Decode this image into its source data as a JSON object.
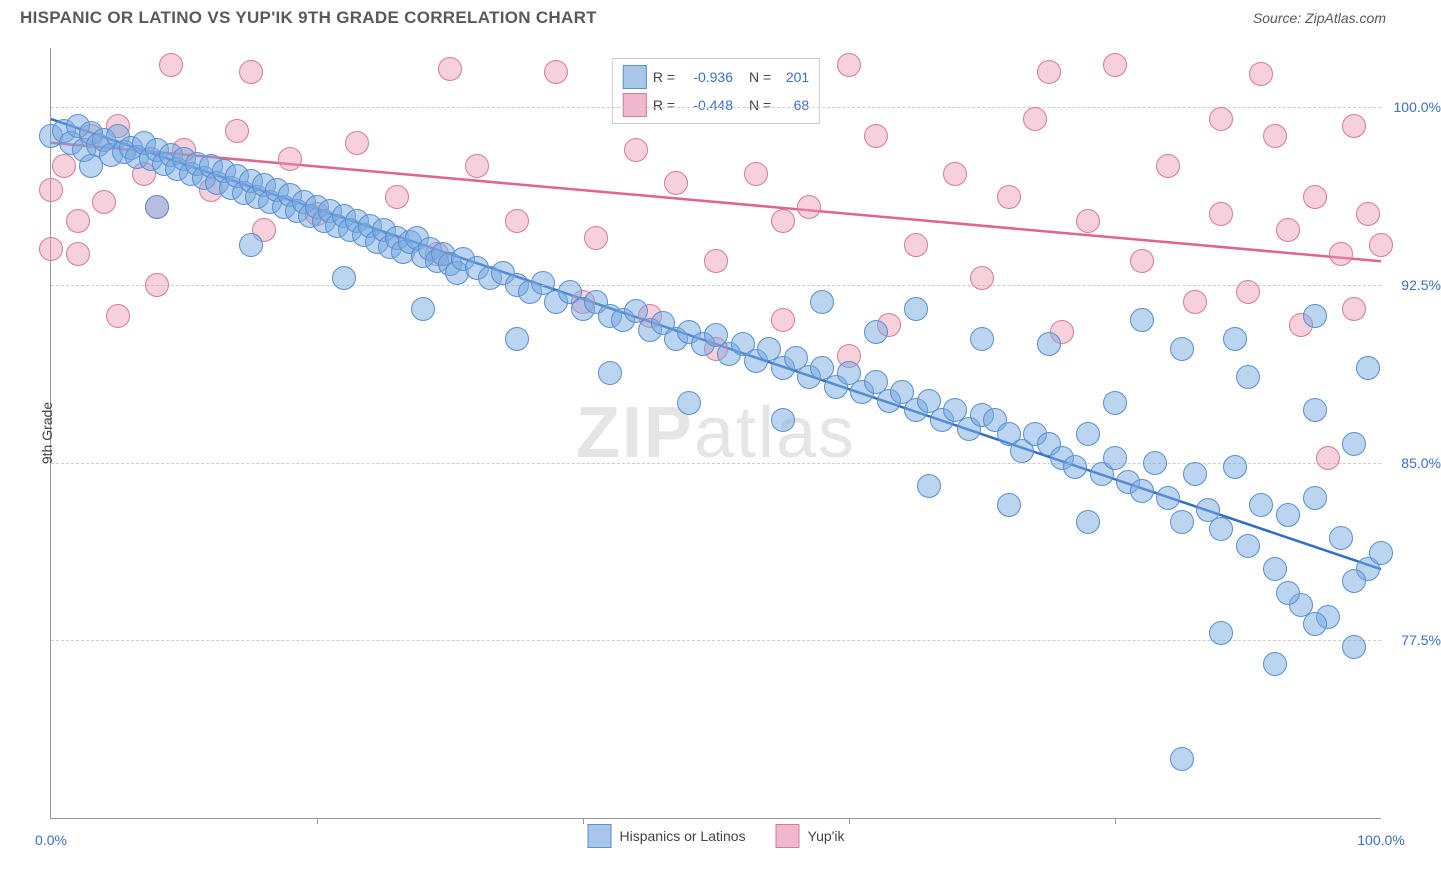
{
  "header": {
    "title": "HISPANIC OR LATINO VS YUP'IK 9TH GRADE CORRELATION CHART",
    "source": "Source: ZipAtlas.com"
  },
  "watermark": {
    "part1": "ZIP",
    "part2": "atlas"
  },
  "chart": {
    "type": "scatter",
    "xlim": [
      0,
      100
    ],
    "ylim": [
      70,
      102.5
    ],
    "y_axis_label": "9th Grade",
    "x_ticks": [
      0,
      20,
      40,
      60,
      80,
      100
    ],
    "x_tick_labels": [
      "0.0%",
      "",
      "",
      "",
      "",
      "100.0%"
    ],
    "y_ticks": [
      77.5,
      85.0,
      92.5,
      100.0
    ],
    "y_tick_labels": [
      "77.5%",
      "85.0%",
      "92.5%",
      "100.0%"
    ],
    "grid_color": "#cccccc",
    "background_color": "#ffffff",
    "axis_color": "#999999",
    "tick_label_color": "#3b6fc9",
    "point_radius": 11,
    "series": [
      {
        "name": "Hispanics or Latinos",
        "fill": "rgba(120,170,225,0.5)",
        "stroke": "#5a8fd0",
        "swatch_fill": "#a8c6ea",
        "swatch_stroke": "#5a8fd0",
        "line_color": "#2f6fc4",
        "R": "-0.936",
        "N": "201",
        "trend": {
          "x1": 0,
          "y1": 99.5,
          "x2": 100,
          "y2": 80.5
        },
        "points": [
          [
            0,
            98.8
          ],
          [
            1,
            99
          ],
          [
            1.5,
            98.5
          ],
          [
            2,
            99.2
          ],
          [
            2.5,
            98.2
          ],
          [
            3,
            98.9
          ],
          [
            3.5,
            98.4
          ],
          [
            4,
            98.6
          ],
          [
            4.5,
            98
          ],
          [
            5,
            98.8
          ],
          [
            5.5,
            98.1
          ],
          [
            6,
            98.3
          ],
          [
            6.5,
            97.9
          ],
          [
            7,
            98.5
          ],
          [
            7.5,
            97.8
          ],
          [
            8,
            98.2
          ],
          [
            8.5,
            97.6
          ],
          [
            9,
            98
          ],
          [
            9.5,
            97.4
          ],
          [
            10,
            97.8
          ],
          [
            10.5,
            97.2
          ],
          [
            11,
            97.6
          ],
          [
            11.5,
            97
          ],
          [
            12,
            97.5
          ],
          [
            12.5,
            96.8
          ],
          [
            13,
            97.3
          ],
          [
            13.5,
            96.6
          ],
          [
            14,
            97.1
          ],
          [
            14.5,
            96.4
          ],
          [
            15,
            96.9
          ],
          [
            15.5,
            96.2
          ],
          [
            16,
            96.7
          ],
          [
            16.5,
            96
          ],
          [
            17,
            96.5
          ],
          [
            17.5,
            95.8
          ],
          [
            18,
            96.3
          ],
          [
            18.5,
            95.6
          ],
          [
            19,
            96
          ],
          [
            19.5,
            95.4
          ],
          [
            20,
            95.8
          ],
          [
            20.5,
            95.2
          ],
          [
            21,
            95.6
          ],
          [
            21.5,
            95
          ],
          [
            22,
            95.4
          ],
          [
            22.5,
            94.8
          ],
          [
            23,
            95.2
          ],
          [
            23.5,
            94.6
          ],
          [
            24,
            95
          ],
          [
            24.5,
            94.3
          ],
          [
            25,
            94.8
          ],
          [
            25.5,
            94.1
          ],
          [
            26,
            94.5
          ],
          [
            26.5,
            93.9
          ],
          [
            27,
            94.3
          ],
          [
            27.5,
            94.5
          ],
          [
            28,
            93.7
          ],
          [
            28.5,
            94
          ],
          [
            29,
            93.5
          ],
          [
            29.5,
            93.8
          ],
          [
            30,
            93.4
          ],
          [
            30.5,
            93
          ],
          [
            31,
            93.6
          ],
          [
            32,
            93.2
          ],
          [
            33,
            92.8
          ],
          [
            34,
            93
          ],
          [
            35,
            92.5
          ],
          [
            36,
            92.2
          ],
          [
            37,
            92.6
          ],
          [
            38,
            91.8
          ],
          [
            39,
            92.2
          ],
          [
            40,
            91.5
          ],
          [
            41,
            91.8
          ],
          [
            42,
            91.2
          ],
          [
            43,
            91
          ],
          [
            44,
            91.4
          ],
          [
            45,
            90.6
          ],
          [
            46,
            90.9
          ],
          [
            47,
            90.2
          ],
          [
            48,
            90.5
          ],
          [
            49,
            90
          ],
          [
            50,
            90.4
          ],
          [
            51,
            89.6
          ],
          [
            52,
            90
          ],
          [
            53,
            89.3
          ],
          [
            54,
            89.8
          ],
          [
            55,
            89
          ],
          [
            56,
            89.4
          ],
          [
            57,
            88.6
          ],
          [
            58,
            89
          ],
          [
            59,
            88.2
          ],
          [
            60,
            88.8
          ],
          [
            61,
            88
          ],
          [
            62,
            88.4
          ],
          [
            63,
            87.6
          ],
          [
            64,
            88
          ],
          [
            65,
            87.2
          ],
          [
            66,
            87.6
          ],
          [
            67,
            86.8
          ],
          [
            68,
            87.2
          ],
          [
            69,
            86.4
          ],
          [
            70,
            87
          ],
          [
            71,
            86.8
          ],
          [
            72,
            86.2
          ],
          [
            73,
            85.5
          ],
          [
            74,
            86.2
          ],
          [
            75,
            85.8
          ],
          [
            76,
            85.2
          ],
          [
            77,
            84.8
          ],
          [
            78,
            86.2
          ],
          [
            79,
            84.5
          ],
          [
            80,
            85.2
          ],
          [
            81,
            84.2
          ],
          [
            82,
            83.8
          ],
          [
            83,
            85
          ],
          [
            84,
            83.5
          ],
          [
            85,
            82.5
          ],
          [
            86,
            84.5
          ],
          [
            87,
            83
          ],
          [
            88,
            82.2
          ],
          [
            89,
            84.8
          ],
          [
            90,
            81.5
          ],
          [
            91,
            83.2
          ],
          [
            92,
            80.5
          ],
          [
            93,
            82.8
          ],
          [
            94,
            79
          ],
          [
            95,
            83.5
          ],
          [
            96,
            78.5
          ],
          [
            97,
            81.8
          ],
          [
            98,
            77.2
          ],
          [
            99,
            80.5
          ],
          [
            100,
            81.2
          ],
          [
            62,
            90.5
          ],
          [
            58,
            91.8
          ],
          [
            70,
            90.2
          ],
          [
            80,
            87.5
          ],
          [
            85,
            89.8
          ],
          [
            90,
            88.6
          ],
          [
            95,
            87.2
          ],
          [
            98,
            85.8
          ],
          [
            95,
            78.2
          ],
          [
            88,
            77.8
          ],
          [
            92,
            76.5
          ],
          [
            85,
            72.5
          ],
          [
            98,
            80
          ],
          [
            93,
            79.5
          ],
          [
            78,
            82.5
          ],
          [
            72,
            83.2
          ],
          [
            66,
            84
          ],
          [
            55,
            86.8
          ],
          [
            48,
            87.5
          ],
          [
            42,
            88.8
          ],
          [
            35,
            90.2
          ],
          [
            28,
            91.5
          ],
          [
            22,
            92.8
          ],
          [
            15,
            94.2
          ],
          [
            8,
            95.8
          ],
          [
            3,
            97.5
          ],
          [
            65,
            91.5
          ],
          [
            75,
            90
          ],
          [
            82,
            91
          ],
          [
            89,
            90.2
          ],
          [
            95,
            91.2
          ],
          [
            99,
            89
          ]
        ]
      },
      {
        "name": "Yup'ik",
        "fill": "rgba(235,150,175,0.45)",
        "stroke": "#d87a9a",
        "swatch_fill": "#f0b8cc",
        "swatch_stroke": "#d87a9a",
        "line_color": "#e0648e",
        "R": "-0.448",
        "N": "68",
        "trend": {
          "x1": 0,
          "y1": 98.5,
          "x2": 100,
          "y2": 93.5
        },
        "points": [
          [
            0,
            94
          ],
          [
            1,
            97.5
          ],
          [
            2,
            95.2
          ],
          [
            3,
            98.8
          ],
          [
            4,
            96
          ],
          [
            5,
            99.2
          ],
          [
            7,
            97.2
          ],
          [
            8,
            95.8
          ],
          [
            9,
            101.8
          ],
          [
            10,
            98.2
          ],
          [
            12,
            96.5
          ],
          [
            14,
            99
          ],
          [
            16,
            94.8
          ],
          [
            18,
            97.8
          ],
          [
            20,
            95.5
          ],
          [
            23,
            98.5
          ],
          [
            26,
            96.2
          ],
          [
            29,
            93.8
          ],
          [
            32,
            97.5
          ],
          [
            35,
            95.2
          ],
          [
            38,
            101.5
          ],
          [
            41,
            94.5
          ],
          [
            44,
            98.2
          ],
          [
            47,
            96.8
          ],
          [
            50,
            93.5
          ],
          [
            53,
            97.2
          ],
          [
            55,
            91
          ],
          [
            57,
            95.8
          ],
          [
            60,
            101.8
          ],
          [
            62,
            98.8
          ],
          [
            65,
            94.2
          ],
          [
            68,
            97.2
          ],
          [
            70,
            92.8
          ],
          [
            72,
            96.2
          ],
          [
            74,
            99.5
          ],
          [
            76,
            90.5
          ],
          [
            78,
            95.2
          ],
          [
            80,
            101.8
          ],
          [
            82,
            93.5
          ],
          [
            84,
            97.5
          ],
          [
            86,
            91.8
          ],
          [
            88,
            95.5
          ],
          [
            90,
            92.2
          ],
          [
            91,
            101.4
          ],
          [
            92,
            98.8
          ],
          [
            93,
            94.8
          ],
          [
            94,
            90.8
          ],
          [
            95,
            96.2
          ],
          [
            96,
            85.2
          ],
          [
            97,
            93.8
          ],
          [
            98,
            91.5
          ],
          [
            99,
            95.5
          ],
          [
            100,
            94.2
          ],
          [
            98,
            99.2
          ],
          [
            88,
            99.5
          ],
          [
            75,
            101.5
          ],
          [
            50,
            89.8
          ],
          [
            45,
            91.2
          ],
          [
            30,
            101.6
          ],
          [
            15,
            101.5
          ],
          [
            8,
            92.5
          ],
          [
            5,
            91.2
          ],
          [
            2,
            93.8
          ],
          [
            0,
            96.5
          ],
          [
            55,
            95.2
          ],
          [
            60,
            89.5
          ],
          [
            40,
            91.8
          ],
          [
            63,
            90.8
          ]
        ]
      }
    ],
    "legend_bottom": [
      {
        "label": "Hispanics or Latinos",
        "fill": "#a8c6ea",
        "stroke": "#5a8fd0"
      },
      {
        "label": "Yup'ik",
        "fill": "#f0b8cc",
        "stroke": "#d87a9a"
      }
    ]
  }
}
